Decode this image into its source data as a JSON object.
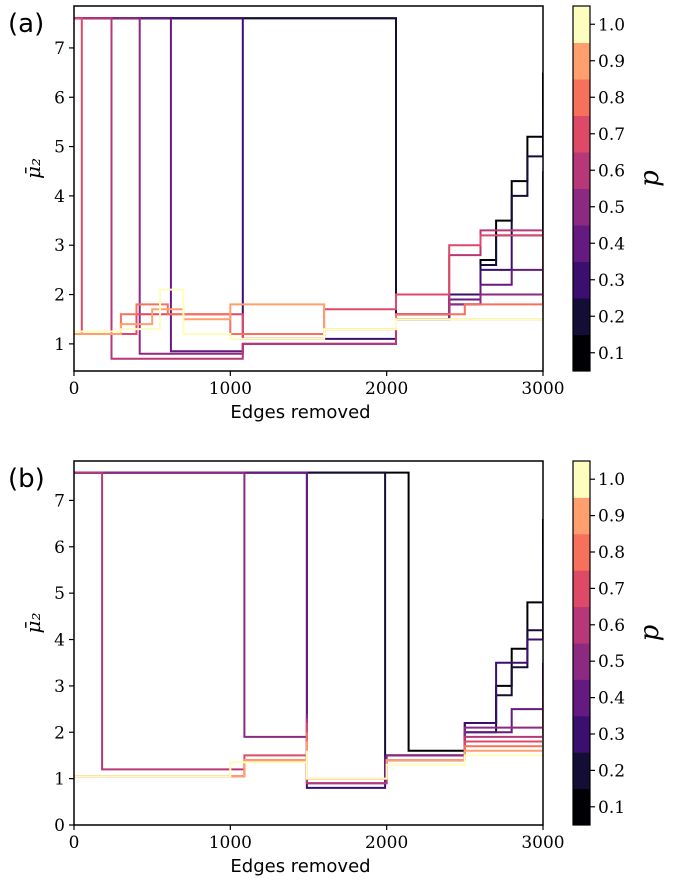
{
  "chart_data": [
    {
      "type": "line",
      "panel_label": "(a)",
      "xlabel": "Edges removed",
      "ylabel": "μ̄₂",
      "xlim": [
        0,
        3000
      ],
      "ylim": [
        0.45,
        7.85
      ],
      "x_ticks": [
        0,
        1000,
        2000,
        3000
      ],
      "y_ticks": [
        1,
        2,
        3,
        4,
        5,
        6,
        7
      ],
      "grid": false,
      "colorbar": {
        "label": "p",
        "ticks": [
          "0.1",
          "0.2",
          "0.3",
          "0.4",
          "0.5",
          "0.6",
          "0.7",
          "0.8",
          "0.9",
          "1.0"
        ],
        "colors": [
          "#000004",
          "#140e36",
          "#3b0f70",
          "#641a80",
          "#8c2981",
          "#b73779",
          "#de4968",
          "#f7705c",
          "#fe9f6d",
          "#fcfdbf"
        ]
      },
      "series": [
        {
          "p": 0.1,
          "color": "#000004",
          "x": [
            0,
            2060,
            2060,
            2400,
            2600,
            2700,
            2800,
            2900,
            3000
          ],
          "y": [
            7.6,
            7.6,
            1.5,
            1.9,
            2.7,
            3.5,
            4.3,
            5.2,
            6.5
          ]
        },
        {
          "p": 0.2,
          "color": "#140e36",
          "x": [
            0,
            2060,
            2060,
            2400,
            2600,
            2700,
            2800,
            2900,
            3000
          ],
          "y": [
            7.6,
            7.6,
            1.5,
            1.8,
            2.6,
            3.2,
            4.0,
            4.8,
            5.8
          ]
        },
        {
          "p": 0.3,
          "color": "#3b0f70",
          "x": [
            0,
            1080,
            1080,
            2060,
            2400,
            2600,
            2800,
            3000
          ],
          "y": [
            7.6,
            7.6,
            1.1,
            1.6,
            2.0,
            2.5,
            3.2,
            4.5
          ]
        },
        {
          "p": 0.4,
          "color": "#641a80",
          "x": [
            0,
            620,
            620,
            1080,
            2060,
            2400,
            2600,
            2800,
            3000
          ],
          "y": [
            7.6,
            7.6,
            0.85,
            1.0,
            1.6,
            1.9,
            2.2,
            2.5,
            2.9
          ]
        },
        {
          "p": 0.5,
          "color": "#8c2981",
          "x": [
            0,
            420,
            420,
            1080,
            2060,
            2400,
            2600,
            3000
          ],
          "y": [
            7.6,
            7.6,
            0.8,
            1.0,
            1.5,
            1.8,
            2.0,
            2.4
          ]
        },
        {
          "p": 0.6,
          "color": "#b73779",
          "x": [
            0,
            240,
            240,
            1080,
            2060,
            2400,
            2600,
            3000
          ],
          "y": [
            7.6,
            7.6,
            0.7,
            1.0,
            1.6,
            2.8,
            3.3,
            2.1
          ]
        },
        {
          "p": 0.7,
          "color": "#de4968",
          "x": [
            0,
            50,
            50,
            400,
            800,
            1080,
            1600,
            2060,
            2400,
            2600,
            3000
          ],
          "y": [
            7.6,
            7.6,
            1.2,
            1.6,
            1.6,
            1.1,
            1.7,
            2.0,
            3.0,
            3.2,
            2.0
          ]
        },
        {
          "p": 0.8,
          "color": "#f7705c",
          "x": [
            0,
            300,
            400,
            600,
            1000,
            1600,
            2060,
            2500,
            3000
          ],
          "y": [
            1.2,
            1.6,
            1.8,
            1.6,
            1.2,
            1.3,
            1.6,
            1.8,
            2.0
          ]
        },
        {
          "p": 0.9,
          "color": "#fe9f6d",
          "x": [
            0,
            300,
            500,
            700,
            1000,
            1600,
            2060,
            3000
          ],
          "y": [
            1.2,
            1.4,
            1.7,
            1.5,
            1.8,
            1.3,
            1.5,
            1.9
          ]
        },
        {
          "p": 1.0,
          "color": "#fcfdbf",
          "x": [
            0,
            300,
            550,
            700,
            1000,
            1600,
            2060,
            3000
          ],
          "y": [
            1.25,
            1.3,
            2.1,
            1.2,
            1.1,
            1.3,
            1.5,
            1.8
          ]
        }
      ]
    },
    {
      "type": "line",
      "panel_label": "(b)",
      "xlabel": "Edges removed",
      "ylabel": "μ̄₂",
      "xlim": [
        0,
        3000
      ],
      "ylim": [
        0,
        7.85
      ],
      "x_ticks": [
        0,
        1000,
        2000,
        3000
      ],
      "y_ticks": [
        0,
        1,
        2,
        3,
        4,
        5,
        6,
        7
      ],
      "grid": false,
      "colorbar": {
        "label": "p",
        "ticks": [
          "0.1",
          "0.2",
          "0.3",
          "0.4",
          "0.5",
          "0.6",
          "0.7",
          "0.8",
          "0.9",
          "1.0"
        ],
        "colors": [
          "#000004",
          "#140e36",
          "#3b0f70",
          "#641a80",
          "#8c2981",
          "#b73779",
          "#de4968",
          "#f7705c",
          "#fe9f6d",
          "#fcfdbf"
        ]
      },
      "series": [
        {
          "p": 0.1,
          "color": "#000004",
          "x": [
            0,
            2140,
            2140,
            2500,
            2700,
            2800,
            2900,
            3000
          ],
          "y": [
            7.6,
            7.6,
            1.6,
            2.2,
            3.0,
            3.8,
            4.8,
            6.6
          ]
        },
        {
          "p": 0.2,
          "color": "#140e36",
          "x": [
            0,
            1990,
            1990,
            2500,
            2700,
            2800,
            2900,
            3000
          ],
          "y": [
            7.6,
            7.6,
            1.5,
            2.0,
            2.8,
            3.4,
            4.2,
            6.0
          ]
        },
        {
          "p": 0.3,
          "color": "#3b0f70",
          "x": [
            0,
            1490,
            1490,
            1990,
            2500,
            2700,
            2900,
            3000
          ],
          "y": [
            7.6,
            7.6,
            0.8,
            1.5,
            2.2,
            3.5,
            4.0,
            5.5
          ]
        },
        {
          "p": 0.4,
          "color": "#641a80",
          "x": [
            0,
            1490,
            1490,
            1990,
            2500,
            2800,
            3000
          ],
          "y": [
            7.6,
            7.6,
            0.9,
            1.4,
            2.0,
            2.5,
            3.5
          ]
        },
        {
          "p": 0.5,
          "color": "#8c2981",
          "x": [
            0,
            1090,
            1090,
            1490,
            1490,
            2000,
            2500,
            3000
          ],
          "y": [
            7.6,
            7.6,
            1.9,
            2.4,
            1.0,
            1.5,
            2.1,
            3.0
          ]
        },
        {
          "p": 0.6,
          "color": "#b73779",
          "x": [
            0,
            180,
            180,
            1090,
            1490,
            1490,
            2000,
            2500,
            3000
          ],
          "y": [
            7.6,
            7.6,
            1.2,
            1.4,
            2.3,
            0.9,
            1.4,
            1.9,
            2.8
          ]
        },
        {
          "p": 0.7,
          "color": "#de4968",
          "x": [
            0,
            1090,
            1490,
            1490,
            2000,
            2500,
            3000
          ],
          "y": [
            1.05,
            1.5,
            2.2,
            1.0,
            1.4,
            1.8,
            2.4
          ]
        },
        {
          "p": 0.8,
          "color": "#f7705c",
          "x": [
            0,
            1090,
            1490,
            1490,
            2000,
            2500,
            3000
          ],
          "y": [
            1.05,
            1.4,
            2.0,
            1.0,
            1.4,
            1.7,
            2.2
          ]
        },
        {
          "p": 0.9,
          "color": "#fe9f6d",
          "x": [
            0,
            1090,
            1490,
            1490,
            2000,
            2500,
            3000
          ],
          "y": [
            1.05,
            1.4,
            1.8,
            1.0,
            1.4,
            1.6,
            2.0
          ]
        },
        {
          "p": 1.0,
          "color": "#fcfdbf",
          "x": [
            0,
            1000,
            1490,
            1490,
            2000,
            2500,
            3000
          ],
          "y": [
            1.05,
            1.35,
            1.6,
            1.0,
            1.3,
            1.5,
            1.9
          ]
        }
      ]
    }
  ]
}
